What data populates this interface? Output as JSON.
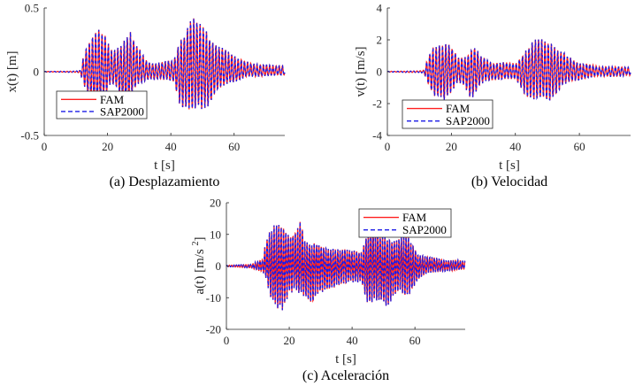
{
  "colors": {
    "fam": "#ff2020",
    "sap": "#1a1ae6",
    "axis": "#262626"
  },
  "chart_data": [
    {
      "type": "line",
      "id": "a",
      "caption": "(a) Desplazamiento",
      "xlabel": "t [s]",
      "ylabel": "x(t) [m]",
      "xlim": [
        0,
        76
      ],
      "ylim": [
        -0.5,
        0.5
      ],
      "xticks": [
        0,
        20,
        40,
        60
      ],
      "yticks": [
        -0.5,
        0,
        0.5
      ],
      "ytick_labels": [
        "-0.5",
        "0",
        "0.5"
      ],
      "legend": {
        "entries": [
          "FAM",
          "SAP2000"
        ],
        "placement": "bottom-left"
      },
      "series": [
        {
          "name": "FAM",
          "style": "solid"
        },
        {
          "name": "SAP2000",
          "style": "dashed"
        }
      ],
      "period_s": 1.0,
      "envelope": {
        "t": [
          0,
          10,
          11.5,
          12,
          14,
          16,
          17.5,
          19,
          21,
          23,
          25,
          27,
          29,
          31,
          33,
          35,
          38,
          41,
          43,
          45,
          47,
          49,
          51,
          53,
          55,
          58,
          61,
          64,
          67,
          70,
          73,
          76
        ],
        "pos": [
          0.002,
          0.005,
          0.01,
          0.08,
          0.25,
          0.33,
          0.37,
          0.3,
          0.17,
          0.2,
          0.26,
          0.33,
          0.22,
          0.14,
          0.08,
          0.07,
          0.08,
          0.1,
          0.28,
          0.35,
          0.43,
          0.38,
          0.36,
          0.28,
          0.2,
          0.17,
          0.12,
          0.08,
          0.06,
          0.06,
          0.05,
          0.05
        ],
        "neg": [
          0.002,
          0.005,
          0.01,
          0.08,
          0.2,
          0.25,
          0.25,
          0.25,
          0.1,
          0.12,
          0.25,
          0.25,
          0.12,
          0.09,
          0.06,
          0.06,
          0.07,
          0.08,
          0.27,
          0.3,
          0.35,
          0.3,
          0.28,
          0.22,
          0.15,
          0.1,
          0.07,
          0.04,
          0.04,
          0.03,
          0.03,
          0.03
        ]
      }
    },
    {
      "type": "line",
      "id": "b",
      "caption": "(b) Velocidad",
      "xlabel": "t [s]",
      "ylabel": "v(t) [m/s]",
      "xlim": [
        0,
        76
      ],
      "ylim": [
        -4,
        4
      ],
      "xticks": [
        0,
        20,
        40,
        60
      ],
      "yticks": [
        -4,
        -2,
        0,
        2,
        4
      ],
      "ytick_labels": [
        "-4",
        "-2",
        "0",
        "2",
        "4"
      ],
      "legend": {
        "entries": [
          "FAM",
          "SAP2000"
        ],
        "placement": "bottom-left"
      },
      "series": [
        {
          "name": "FAM",
          "style": "solid"
        },
        {
          "name": "SAP2000",
          "style": "dashed"
        }
      ],
      "period_s": 1.0,
      "envelope": {
        "t": [
          0,
          10,
          11.5,
          12,
          14,
          16,
          18,
          20,
          22,
          24,
          26,
          27,
          29,
          31,
          33,
          36,
          40,
          43,
          45,
          47,
          49,
          51,
          53,
          55,
          57,
          60,
          63,
          66,
          70,
          73,
          76
        ],
        "pos": [
          0.02,
          0.05,
          0.1,
          0.5,
          1.6,
          1.8,
          1.8,
          1.6,
          0.9,
          1.0,
          1.4,
          1.7,
          1.0,
          0.8,
          0.6,
          0.6,
          0.5,
          1.4,
          1.9,
          2.1,
          1.9,
          2.0,
          1.5,
          1.2,
          0.9,
          0.6,
          0.5,
          0.3,
          0.35,
          0.3,
          0.25
        ],
        "neg": [
          0.02,
          0.05,
          0.1,
          0.5,
          1.4,
          1.6,
          1.8,
          1.4,
          0.7,
          0.8,
          1.6,
          1.7,
          0.9,
          0.6,
          0.5,
          0.5,
          0.5,
          1.4,
          1.8,
          2.0,
          1.9,
          1.8,
          1.3,
          0.9,
          0.7,
          0.5,
          0.4,
          0.3,
          0.3,
          0.3,
          0.25
        ]
      }
    },
    {
      "type": "line",
      "id": "c",
      "caption": "(c) Aceleración",
      "xlabel": "t [s]",
      "ylabel": "a(t) [m/s²]",
      "xlim": [
        0,
        76
      ],
      "ylim": [
        -20,
        20
      ],
      "xticks": [
        0,
        20,
        40,
        60
      ],
      "yticks": [
        -20,
        -10,
        0,
        10,
        20
      ],
      "ytick_labels": [
        "-20",
        "-10",
        "0",
        "10",
        "20"
      ],
      "legend": {
        "entries": [
          "FAM",
          "SAP2000"
        ],
        "placement": "top-right"
      },
      "series": [
        {
          "name": "FAM",
          "style": "solid"
        },
        {
          "name": "SAP2000",
          "style": "dashed"
        }
      ],
      "period_s": 0.75,
      "envelope": {
        "t": [
          0,
          8,
          10,
          11.5,
          12.5,
          14,
          16,
          18,
          20,
          22,
          23.5,
          25,
          27,
          29,
          32,
          35,
          38,
          41,
          43,
          45,
          47,
          49,
          51,
          53,
          55,
          57,
          59,
          61,
          64,
          67,
          70,
          73,
          76
        ],
        "pos": [
          0.2,
          0.6,
          1.5,
          2.0,
          8.0,
          12.0,
          15.0,
          13.0,
          9.0,
          11.0,
          15.0,
          9.0,
          7.0,
          7.0,
          6.0,
          6.0,
          5.0,
          5.0,
          5.0,
          12.0,
          12.0,
          10.0,
          10.0,
          9.0,
          9.0,
          10.0,
          8.0,
          4.0,
          3.0,
          2.5,
          2.0,
          2.0,
          1.5
        ],
        "neg": [
          0.2,
          0.6,
          1.5,
          2.0,
          4.0,
          10.0,
          13.0,
          14.0,
          10.0,
          8.0,
          9.0,
          9.0,
          13.0,
          10.0,
          8.0,
          6.0,
          6.0,
          5.0,
          5.0,
          13.0,
          13.0,
          12.0,
          13.0,
          10.0,
          9.0,
          11.0,
          8.0,
          4.0,
          2.5,
          2.0,
          1.5,
          1.5,
          1.0
        ]
      }
    }
  ]
}
